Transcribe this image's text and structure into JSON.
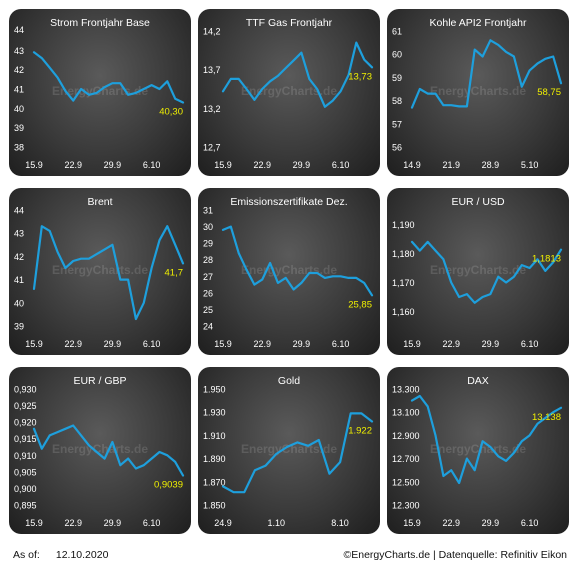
{
  "footer": {
    "as_of_label": "As of:",
    "as_of_date": "12.10.2020",
    "source": "©EnergyCharts.de | Datenquelle: Refinitiv Eikon"
  },
  "colors": {
    "line": "#1e9fdc",
    "last_value": "#f0f000",
    "text": "#ffffff"
  },
  "watermark": "EnergyCharts.de",
  "chart_data": [
    {
      "type": "line",
      "title": "Strom Frontjahr Base",
      "y_ticks": [
        "43",
        "42",
        "41",
        "40",
        "39",
        "38"
      ],
      "y_tick_values": [
        43,
        42,
        41,
        40,
        39,
        38
      ],
      "ylim": [
        38,
        44
      ],
      "y_top_label": "44",
      "x_ticks": [
        {
          "label": "15.9",
          "i": 0
        },
        {
          "label": "22.9",
          "i": 5
        },
        {
          "label": "29.9",
          "i": 10
        },
        {
          "label": "6.10",
          "i": 15
        }
      ],
      "x_count": 20,
      "values": [
        42.9,
        42.6,
        42.1,
        41.6,
        40.9,
        40.4,
        41.0,
        40.7,
        40.8,
        41.1,
        41.3,
        41.3,
        40.7,
        40.8,
        41.0,
        41.2,
        41.0,
        41.4,
        40.5,
        40.3
      ],
      "last_label": "40,30"
    },
    {
      "type": "line",
      "title": "TTF Gas Frontjahr",
      "y_ticks": [
        "14,2",
        "13,7",
        "13,2",
        "12,7"
      ],
      "y_tick_values": [
        14.2,
        13.7,
        13.2,
        12.7
      ],
      "ylim": [
        12.7,
        14.2
      ],
      "x_ticks": [
        {
          "label": "15.9",
          "i": 0
        },
        {
          "label": "22.9",
          "i": 5
        },
        {
          "label": "29.9",
          "i": 10
        },
        {
          "label": "6.10",
          "i": 15
        }
      ],
      "x_count": 20,
      "values": [
        13.42,
        13.58,
        13.58,
        13.45,
        13.31,
        13.45,
        13.55,
        13.62,
        13.72,
        13.82,
        13.92,
        13.58,
        13.45,
        13.22,
        13.3,
        13.42,
        13.63,
        14.05,
        13.83,
        13.73
      ],
      "last_label": "13,73"
    },
    {
      "type": "line",
      "title": "Kohle API2 Frontjahr",
      "y_ticks": [
        "61",
        "60",
        "59",
        "58",
        "57",
        "56"
      ],
      "y_tick_values": [
        61,
        60,
        59,
        58,
        57,
        56
      ],
      "ylim": [
        56,
        61
      ],
      "x_ticks": [
        {
          "label": "14.9",
          "i": 0
        },
        {
          "label": "21.9",
          "i": 5
        },
        {
          "label": "28.9",
          "i": 10
        },
        {
          "label": "5.10",
          "i": 15
        }
      ],
      "x_count": 20,
      "values": [
        57.7,
        58.5,
        58.3,
        58.3,
        57.8,
        57.8,
        57.75,
        57.75,
        60.2,
        59.9,
        60.6,
        60.4,
        60.1,
        59.9,
        58.6,
        59.3,
        59.6,
        59.8,
        59.9,
        58.75
      ],
      "last_label": "58,75"
    },
    {
      "type": "line",
      "title": "Brent",
      "y_ticks": [
        "44",
        "43",
        "42",
        "41",
        "40",
        "39"
      ],
      "y_tick_values": [
        44,
        43,
        42,
        41,
        40,
        39
      ],
      "ylim": [
        39,
        44
      ],
      "x_ticks": [
        {
          "label": "15.9",
          "i": 0
        },
        {
          "label": "22.9",
          "i": 5
        },
        {
          "label": "29.9",
          "i": 10
        },
        {
          "label": "6.10",
          "i": 15
        }
      ],
      "x_count": 20,
      "values": [
        40.6,
        43.3,
        43.1,
        42.2,
        41.5,
        41.8,
        41.9,
        41.9,
        42.1,
        42.3,
        42.5,
        41.0,
        41.0,
        39.3,
        40.0,
        41.5,
        42.7,
        43.3,
        42.5,
        41.7
      ],
      "last_label": "41,7"
    },
    {
      "type": "line",
      "title": "Emissionszertifikate Dez.",
      "y_ticks": [
        "31",
        "30",
        "29",
        "28",
        "27",
        "26",
        "25",
        "24"
      ],
      "y_tick_values": [
        31,
        30,
        29,
        28,
        27,
        26,
        25,
        24
      ],
      "ylim": [
        24,
        31
      ],
      "x_ticks": [
        {
          "label": "15.9",
          "i": 0
        },
        {
          "label": "22.9",
          "i": 5
        },
        {
          "label": "29.9",
          "i": 10
        },
        {
          "label": "6.10",
          "i": 15
        }
      ],
      "x_count": 20,
      "values": [
        29.8,
        30.0,
        28.4,
        27.4,
        26.5,
        26.8,
        27.8,
        26.6,
        26.9,
        26.2,
        26.6,
        27.2,
        27.2,
        26.9,
        27.0,
        27.0,
        26.9,
        26.9,
        26.6,
        25.85
      ],
      "last_label": "25,85"
    },
    {
      "type": "line",
      "title": "EUR / USD",
      "y_ticks": [
        "1,190",
        "1,180",
        "1,170",
        "1,160"
      ],
      "y_tick_values": [
        1.19,
        1.18,
        1.17,
        1.16
      ],
      "ylim": [
        1.155,
        1.195
      ],
      "x_ticks": [
        {
          "label": "15.9",
          "i": 0
        },
        {
          "label": "22.9",
          "i": 5
        },
        {
          "label": "29.9",
          "i": 10
        },
        {
          "label": "6.10",
          "i": 15
        }
      ],
      "x_count": 20,
      "values": [
        1.184,
        1.181,
        1.184,
        1.181,
        1.178,
        1.17,
        1.165,
        1.166,
        1.163,
        1.165,
        1.166,
        1.172,
        1.17,
        1.172,
        1.176,
        1.175,
        1.178,
        1.174,
        1.177,
        1.1813
      ],
      "last_label": "1,1813"
    },
    {
      "type": "line",
      "title": "EUR / GBP",
      "y_ticks": [
        "0,930",
        "0,925",
        "0,920",
        "0,915",
        "0,910",
        "0,905",
        "0,900",
        "0,895"
      ],
      "y_tick_values": [
        0.93,
        0.925,
        0.92,
        0.915,
        0.91,
        0.905,
        0.9,
        0.895
      ],
      "ylim": [
        0.895,
        0.93
      ],
      "x_ticks": [
        {
          "label": "15.9",
          "i": 0
        },
        {
          "label": "22.9",
          "i": 5
        },
        {
          "label": "29.9",
          "i": 10
        },
        {
          "label": "6.10",
          "i": 15
        }
      ],
      "x_count": 20,
      "values": [
        0.918,
        0.912,
        0.916,
        0.917,
        0.918,
        0.919,
        0.916,
        0.913,
        0.911,
        0.909,
        0.914,
        0.907,
        0.909,
        0.906,
        0.907,
        0.909,
        0.911,
        0.91,
        0.908,
        0.9039
      ],
      "last_label": "0,9039"
    },
    {
      "type": "line",
      "title": "Gold",
      "y_ticks": [
        "1.950",
        "1.930",
        "1.910",
        "1.890",
        "1.870",
        "1.850"
      ],
      "y_tick_values": [
        1950,
        1930,
        1910,
        1890,
        1870,
        1850
      ],
      "ylim": [
        1850,
        1950
      ],
      "x_ticks": [
        {
          "label": "24.9",
          "i": 0
        },
        {
          "label": "1.10",
          "i": 5
        },
        {
          "label": "8.10",
          "i": 11
        }
      ],
      "x_count": 15,
      "values": [
        1866,
        1861,
        1861,
        1880,
        1884,
        1894,
        1900,
        1904,
        1901,
        1906,
        1877,
        1887,
        1929,
        1929,
        1922
      ],
      "last_label": "1.922"
    },
    {
      "type": "line",
      "title": "DAX",
      "y_ticks": [
        "13.300",
        "13.100",
        "12.900",
        "12.700",
        "12.500",
        "12.300"
      ],
      "y_tick_values": [
        13300,
        13100,
        12900,
        12700,
        12500,
        12300
      ],
      "ylim": [
        12300,
        13300
      ],
      "x_ticks": [
        {
          "label": "15.9",
          "i": 0
        },
        {
          "label": "22.9",
          "i": 5
        },
        {
          "label": "29.9",
          "i": 10
        },
        {
          "label": "6.10",
          "i": 15
        }
      ],
      "x_count": 20,
      "values": [
        13200,
        13240,
        13150,
        12900,
        12550,
        12600,
        12490,
        12700,
        12600,
        12850,
        12800,
        12720,
        12680,
        12750,
        12850,
        12900,
        13000,
        13050,
        13100,
        13138
      ],
      "last_label": "13.138"
    }
  ]
}
